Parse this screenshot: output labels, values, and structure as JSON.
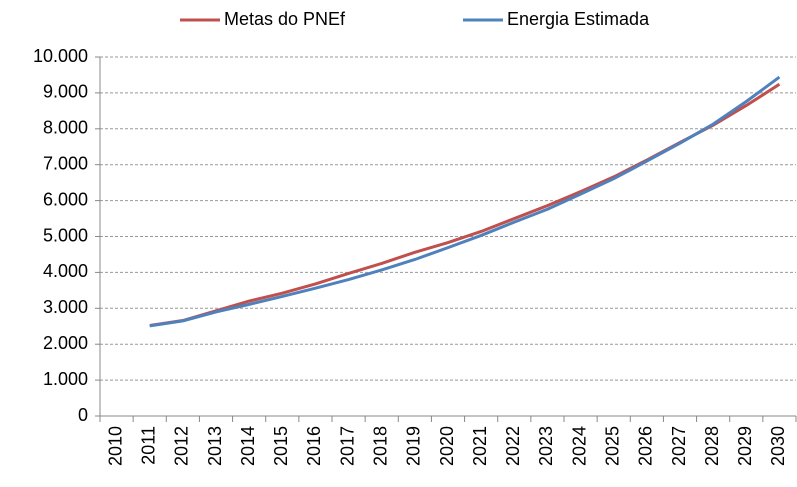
{
  "chart_data": {
    "type": "line",
    "categories": [
      "2010",
      "2011",
      "2012",
      "2013",
      "2014",
      "2015",
      "2016",
      "2017",
      "2018",
      "2019",
      "2020",
      "2021",
      "2022",
      "2023",
      "2024",
      "2025",
      "2026",
      "2027",
      "2028",
      "2029",
      "2030"
    ],
    "series": [
      {
        "name": "Metas do PNEf",
        "color": "#c0504d",
        "values": [
          null,
          2520,
          2660,
          2930,
          3200,
          3420,
          3680,
          3970,
          4250,
          4560,
          4830,
          5140,
          5500,
          5860,
          6250,
          6660,
          7130,
          7620,
          8100,
          8650,
          9240
        ]
      },
      {
        "name": "Energia Estimada",
        "color": "#4f81bd",
        "values": [
          null,
          2510,
          2650,
          2900,
          3110,
          3330,
          3560,
          3800,
          4070,
          4360,
          4690,
          5030,
          5400,
          5760,
          6180,
          6610,
          7100,
          7600,
          8130,
          8760,
          9440
        ]
      }
    ],
    "ylim": [
      0,
      10000
    ],
    "yticks": [
      0,
      {
        "value": 1000,
        "label": "1.000"
      },
      {
        "value": 2000,
        "label": "2.000"
      },
      {
        "value": 3000,
        "label": "3.000"
      },
      {
        "value": 4000,
        "label": "4.000"
      },
      {
        "value": 5000,
        "label": "5.000"
      },
      {
        "value": 6000,
        "label": "6.000"
      },
      {
        "value": 7000,
        "label": "7.000"
      },
      {
        "value": 8000,
        "label": "8.000"
      },
      {
        "value": 9000,
        "label": "9.000"
      },
      {
        "value": 10000,
        "label": "10.000"
      }
    ],
    "grid": true,
    "legend": "top"
  }
}
